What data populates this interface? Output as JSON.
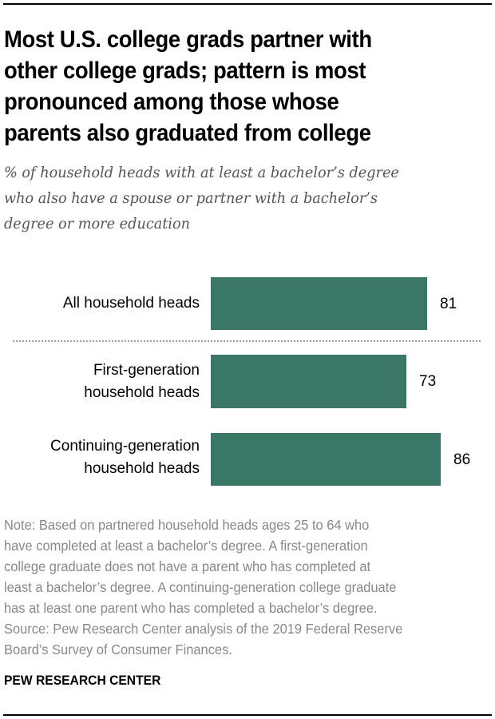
{
  "title": "Most U.S. college grads partner with other college grads; pattern is most pronounced among those whose parents also graduated from college",
  "title_lines": [
    "Most U.S. college grads partner with",
    "other college grads; pattern is most",
    "pronounced among those whose",
    "parents also graduated from college"
  ],
  "subtitle_lines": [
    "% of household heads with at least a bachelor’s degree",
    "who also have a spouse or partner with a bachelor’s",
    "degree or more education"
  ],
  "bars": [
    {
      "label_lines": [
        "All household heads"
      ],
      "value": 81,
      "value_label": "81"
    },
    {
      "label_lines": [
        "First-generation",
        "household heads"
      ],
      "value": 73,
      "value_label": "73"
    },
    {
      "label_lines": [
        "Continuing-generation",
        "household heads"
      ],
      "value": 86,
      "value_label": "86"
    }
  ],
  "note_lines": [
    "Note: Based on partnered household heads ages 25 to 64 who",
    "have completed at least a bachelor’s degree. A first-generation",
    "college graduate does not have a parent who has completed at",
    "least a bachelor’s degree. A continuing-generation college graduate",
    "has at least one parent who has completed a bachelor’s degree.",
    "Source: Pew Research Center analysis of the 2019 Federal Reserve",
    "Board’s Survey of Consumer Finances."
  ],
  "brand": "PEW RESEARCH CENTER",
  "colors": {
    "bar": "#3a7767",
    "title": "#000000",
    "subtitle": "#555555",
    "note": "#888888"
  },
  "chart_data": {
    "type": "bar",
    "orientation": "horizontal",
    "title": "Most U.S. college grads partner with other college grads; pattern is most pronounced among those whose parents also graduated from college",
    "subtitle": "% of household heads with at least a bachelor’s degree who also have a spouse or partner with a bachelor’s degree or more education",
    "categories": [
      "All household heads",
      "First-generation household heads",
      "Continuing-generation household heads"
    ],
    "values": [
      81,
      73,
      86
    ],
    "xlabel": "",
    "ylabel": "",
    "grid": false,
    "legend": null,
    "data_labels": true,
    "separator_after_index": 0,
    "color": "#3a7767"
  }
}
